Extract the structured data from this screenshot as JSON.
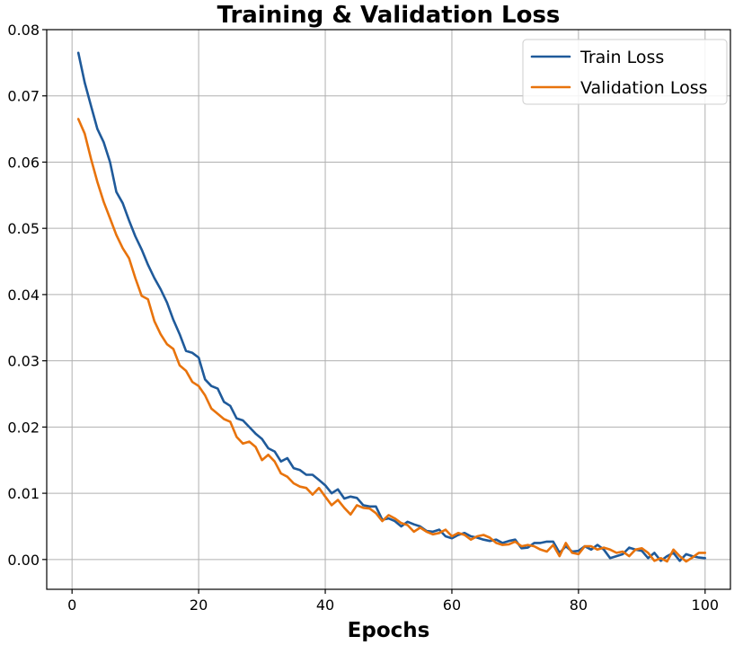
{
  "chart_data": {
    "type": "line",
    "title": "Training & Validation Loss",
    "xlabel": "Epochs",
    "ylabel": "",
    "xlim": [
      -4,
      104
    ],
    "ylim": [
      -0.0045,
      0.08
    ],
    "xticks": [
      0,
      20,
      40,
      60,
      80,
      100
    ],
    "xtick_labels": [
      "0",
      "20",
      "40",
      "60",
      "80",
      "100"
    ],
    "yticks": [
      0.0,
      0.01,
      0.02,
      0.03,
      0.04,
      0.05,
      0.06,
      0.07,
      0.08
    ],
    "ytick_labels": [
      "0.00",
      "0.01",
      "0.02",
      "0.03",
      "0.04",
      "0.05",
      "0.06",
      "0.07",
      "0.08"
    ],
    "grid": true,
    "legend_position": "top-right",
    "x": [
      1,
      2,
      3,
      4,
      5,
      6,
      7,
      8,
      9,
      10,
      11,
      12,
      13,
      14,
      15,
      16,
      17,
      18,
      19,
      20,
      21,
      22,
      23,
      24,
      25,
      26,
      27,
      28,
      29,
      30,
      31,
      32,
      33,
      34,
      35,
      36,
      37,
      38,
      39,
      40,
      41,
      42,
      43,
      44,
      45,
      46,
      47,
      48,
      49,
      50,
      51,
      52,
      53,
      54,
      55,
      56,
      57,
      58,
      59,
      60,
      61,
      62,
      63,
      64,
      65,
      66,
      67,
      68,
      69,
      70,
      71,
      72,
      73,
      74,
      75,
      76,
      77,
      78,
      79,
      80,
      81,
      82,
      83,
      84,
      85,
      86,
      87,
      88,
      89,
      90,
      91,
      92,
      93,
      94,
      95,
      96,
      97,
      98,
      99,
      100
    ],
    "series": [
      {
        "name": "Train Loss",
        "color": "#1f5a9a",
        "values": [
          0.0765,
          0.072,
          0.0685,
          0.065,
          0.063,
          0.06,
          0.0555,
          0.0538,
          0.0512,
          0.0488,
          0.0468,
          0.0445,
          0.0425,
          0.0408,
          0.0388,
          0.0362,
          0.034,
          0.0315,
          0.0312,
          0.0305,
          0.0272,
          0.0262,
          0.0258,
          0.0238,
          0.0232,
          0.0213,
          0.021,
          0.02,
          0.019,
          0.0182,
          0.0168,
          0.0163,
          0.0148,
          0.0153,
          0.0138,
          0.0135,
          0.0128,
          0.0128,
          0.012,
          0.0112,
          0.01,
          0.0106,
          0.0092,
          0.0095,
          0.0093,
          0.0082,
          0.008,
          0.008,
          0.006,
          0.0062,
          0.0058,
          0.005,
          0.0057,
          0.0053,
          0.005,
          0.0043,
          0.0042,
          0.0045,
          0.0035,
          0.0032,
          0.0037,
          0.004,
          0.0035,
          0.0033,
          0.003,
          0.0028,
          0.003,
          0.0025,
          0.0028,
          0.003,
          0.0017,
          0.0018,
          0.0025,
          0.0025,
          0.0027,
          0.0027,
          0.001,
          0.002,
          0.0012,
          0.0013,
          0.002,
          0.0015,
          0.0022,
          0.0015,
          0.0002,
          0.0005,
          0.0008,
          0.0018,
          0.0015,
          0.0013,
          0.0002,
          0.001,
          -0.0002,
          0.0005,
          0.001,
          -0.0002,
          0.0008,
          0.0005,
          0.0003,
          0.0002
        ]
      },
      {
        "name": "Validation Loss",
        "color": "#e8730c",
        "values": [
          0.0665,
          0.0643,
          0.0605,
          0.057,
          0.054,
          0.0515,
          0.049,
          0.047,
          0.0455,
          0.0425,
          0.0398,
          0.0393,
          0.036,
          0.034,
          0.0325,
          0.0318,
          0.0293,
          0.0285,
          0.0268,
          0.0262,
          0.0248,
          0.0228,
          0.022,
          0.0212,
          0.0208,
          0.0185,
          0.0175,
          0.0178,
          0.017,
          0.015,
          0.0158,
          0.0148,
          0.013,
          0.0125,
          0.0115,
          0.011,
          0.0108,
          0.0098,
          0.0108,
          0.0095,
          0.0082,
          0.009,
          0.0078,
          0.0068,
          0.0082,
          0.0078,
          0.0077,
          0.007,
          0.0058,
          0.0067,
          0.0062,
          0.0055,
          0.0052,
          0.0042,
          0.0048,
          0.0042,
          0.0038,
          0.004,
          0.0045,
          0.0035,
          0.004,
          0.0037,
          0.003,
          0.0035,
          0.0037,
          0.0033,
          0.0025,
          0.0022,
          0.0023,
          0.0027,
          0.002,
          0.0022,
          0.002,
          0.0015,
          0.0012,
          0.0022,
          0.0005,
          0.0025,
          0.001,
          0.0008,
          0.002,
          0.002,
          0.0015,
          0.0018,
          0.0015,
          0.001,
          0.0012,
          0.0005,
          0.0015,
          0.0017,
          0.001,
          -0.0002,
          0.0002,
          -0.0003,
          0.0015,
          0.0005,
          -0.0003,
          0.0003,
          0.001,
          0.001
        ]
      }
    ]
  }
}
